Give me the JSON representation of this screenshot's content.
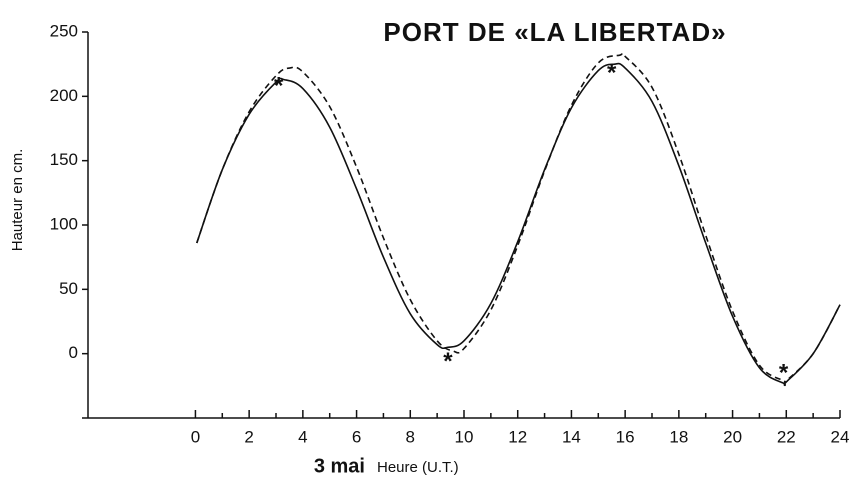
{
  "chart_data": {
    "type": "line",
    "title": "PORT DE «LA LIBERTAD»",
    "ylabel": "Hauteur en cm.",
    "xlabel_date": "3 mai",
    "xlabel": "Heure (U.T.)",
    "xlim": [
      -4,
      24
    ],
    "xticks": [
      0,
      2,
      4,
      6,
      8,
      10,
      12,
      14,
      16,
      18,
      20,
      22,
      24
    ],
    "xticks_minor": [
      1,
      3,
      5,
      7,
      9,
      11,
      13,
      15,
      17,
      19,
      21,
      23
    ],
    "ylim": [
      -50,
      250
    ],
    "yticks": [
      0,
      50,
      100,
      150,
      200,
      250
    ],
    "grid": false,
    "series": [
      {
        "color": "#111111",
        "dash": false,
        "x": [
          0.05,
          1,
          2,
          3,
          3.3,
          4,
          5,
          6,
          7,
          8,
          9,
          9.4,
          10,
          11,
          12,
          13,
          14,
          15,
          15.6,
          16,
          17,
          18,
          19,
          20,
          21,
          21.9,
          22,
          23,
          24
        ],
        "values": [
          86,
          143,
          186,
          211,
          213,
          206,
          176,
          128,
          75,
          31,
          7,
          5,
          10,
          39,
          87,
          143,
          191,
          220,
          225,
          222,
          196,
          146,
          86,
          29,
          -11,
          -23,
          -22,
          0,
          38
        ]
      },
      {
        "color": "#111111",
        "dash": true,
        "x": [
          0.05,
          1,
          2,
          3,
          3.5,
          4,
          5,
          6,
          7,
          8,
          9,
          9.6,
          10,
          11,
          12,
          13,
          14,
          15,
          15.8,
          16,
          17,
          18,
          19,
          20,
          21,
          21.9,
          22,
          23,
          24
        ],
        "values": [
          86,
          143,
          188,
          216,
          222,
          219,
          192,
          145,
          90,
          42,
          10,
          2,
          4,
          34,
          84,
          142,
          193,
          226,
          232,
          231,
          207,
          155,
          92,
          33,
          -9,
          -21,
          -21,
          0,
          38
        ]
      }
    ],
    "points": {
      "type": "scatter",
      "marker": "*",
      "color": "#111111",
      "x": [
        3.1,
        9.4,
        15.5,
        21.9
      ],
      "values": [
        211,
        -3,
        221,
        -12
      ]
    }
  }
}
